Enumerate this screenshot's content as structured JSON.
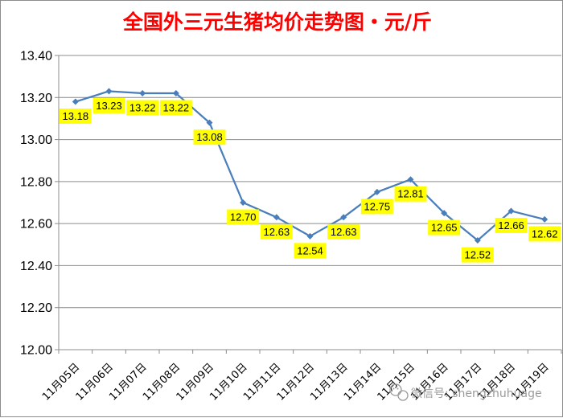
{
  "chart_data": {
    "type": "line",
    "title": "全国外三元生猪均价走势图・元/斤",
    "xlabel": "",
    "ylabel": "",
    "categories": [
      "11月05日",
      "11月06日",
      "11月07日",
      "11月08日",
      "11月09日",
      "11月10日",
      "11月11日",
      "11月12日",
      "11月13日",
      "11月14日",
      "11月15日",
      "11月16日",
      "11月17日",
      "11月18日",
      "11月19日"
    ],
    "series": [
      {
        "values": [
          13.18,
          13.23,
          13.22,
          13.22,
          13.08,
          12.7,
          12.63,
          12.54,
          12.63,
          12.75,
          12.81,
          12.65,
          12.52,
          12.66,
          12.62
        ]
      }
    ],
    "y_ticks": [
      "12.00",
      "12.20",
      "12.40",
      "12.60",
      "12.80",
      "13.00",
      "13.20",
      "13.40"
    ],
    "data_labels": [
      "13.18",
      "13.23",
      "13.22",
      "13.22",
      "13.08",
      "12.70",
      "12.63",
      "12.54",
      "12.63",
      "12.75",
      "12.81",
      "12.65",
      "12.52",
      "12.66",
      "12.62"
    ],
    "ylim": [
      12.0,
      13.4
    ],
    "grid": true,
    "legend": "none"
  },
  "watermark": "微信号: shengzhuhuage",
  "colors": {
    "title": "#ff0000",
    "line": "#4a7ebb",
    "label_bg": "#ffff00",
    "grid": "#8c8c8c",
    "watermark": "#9a9a9a"
  }
}
